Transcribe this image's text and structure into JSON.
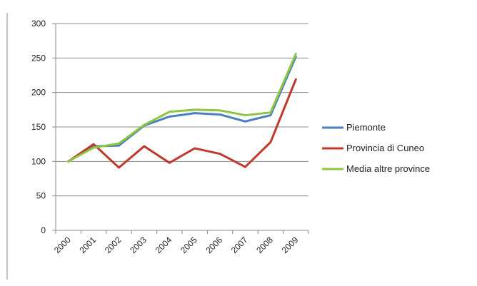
{
  "chart_data": {
    "type": "line",
    "title": "",
    "xlabel": "",
    "ylabel": "",
    "categories": [
      "2000",
      "2001",
      "2002",
      "2003",
      "2004",
      "2005",
      "2006",
      "2007",
      "2008",
      "2009"
    ],
    "ylim": [
      0,
      300
    ],
    "yticks": [
      "0",
      "50",
      "100",
      "150",
      "200",
      "250",
      "300"
    ],
    "grid": true,
    "legend_position": "right",
    "series": [
      {
        "name": "Piemonte",
        "color": "#4a7fc1",
        "values": [
          100,
          122,
          123,
          152,
          165,
          170,
          168,
          158,
          167,
          252
        ]
      },
      {
        "name": "Provincia di Cuneo",
        "color": "#c0392b",
        "values": [
          100,
          125,
          91,
          122,
          98,
          119,
          111,
          92,
          128,
          219
        ]
      },
      {
        "name": "Media altre province",
        "color": "#8dc63f",
        "values": [
          100,
          120,
          126,
          153,
          172,
          175,
          174,
          167,
          171,
          256
        ]
      }
    ]
  }
}
